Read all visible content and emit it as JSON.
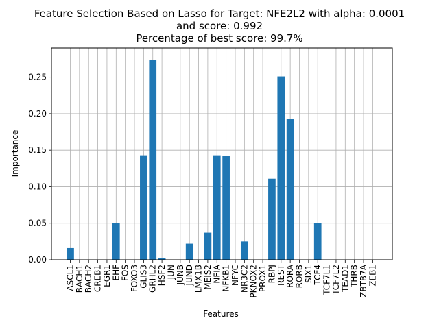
{
  "chart_data": {
    "type": "bar",
    "title_lines": [
      "Feature Selection Based on Lasso for Target: NFE2L2 with alpha: 0.0001",
      "and score: 0.992",
      "Percentage of best score: 99.7%"
    ],
    "xlabel": "Features",
    "ylabel": "Importance",
    "ylim": [
      0,
      0.29
    ],
    "yticks": [
      "0.00",
      "0.05",
      "0.10",
      "0.15",
      "0.20",
      "0.25"
    ],
    "grid": true,
    "bar_color": "#1f77b4",
    "categories": [
      "ASCL1",
      "BACH1",
      "BACH2",
      "CREB1",
      "EGR1",
      "EHF",
      "FOS",
      "FOXO3",
      "GLIS3",
      "GRHL2",
      "HSF2",
      "JUN",
      "JUNB",
      "JUND",
      "LMX1B",
      "MEIS2",
      "NFIA",
      "NFKB1",
      "NFYC",
      "NR3C2",
      "PKNOX2",
      "PROX1",
      "RBPJ",
      "REST",
      "RORA",
      "RORB",
      "SIX1",
      "TCF4",
      "TCF7L1",
      "TCF7L2",
      "TEAD1",
      "THRB",
      "ZBTB7A",
      "ZEB1"
    ],
    "values": [
      0.016,
      0,
      0,
      0,
      0,
      0.05,
      0,
      0,
      0.143,
      0.274,
      0.002,
      0,
      0,
      0.022,
      0,
      0.037,
      0.143,
      0.142,
      0,
      0.025,
      0,
      0,
      0.111,
      0.251,
      0.193,
      0,
      0,
      0.05,
      0,
      0,
      0,
      0,
      0,
      0
    ]
  }
}
